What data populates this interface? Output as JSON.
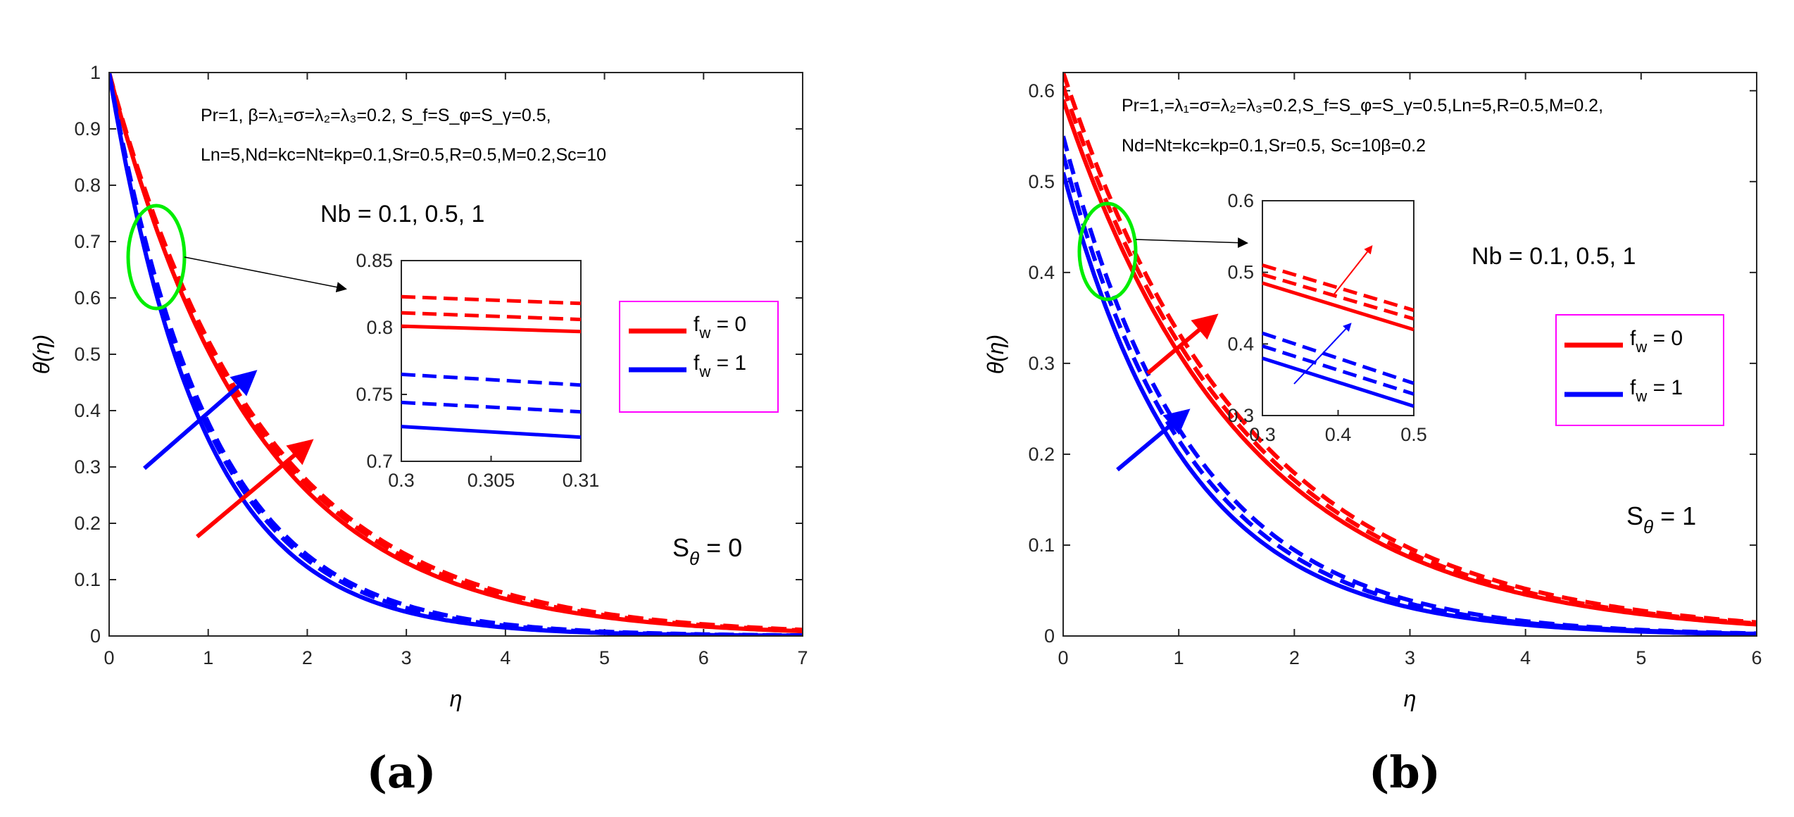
{
  "colors": {
    "red": "#ff0000",
    "blue": "#0000ff",
    "green": "#00ee00",
    "legend_box": "#ff00ff",
    "axis": "#262626"
  },
  "chart_data": [
    {
      "type": "line",
      "panel_label": "(a)",
      "xlabel": "η",
      "ylabel": "θ(η)",
      "xlim": [
        0,
        7
      ],
      "ylim": [
        0,
        1
      ],
      "xticks": [
        "0",
        "1",
        "2",
        "3",
        "4",
        "5",
        "6",
        "7"
      ],
      "yticks": [
        "0",
        "0.1",
        "0.2",
        "0.3",
        "0.4",
        "0.5",
        "0.6",
        "0.7",
        "0.8",
        "0.9",
        "1"
      ],
      "params_line1": "Pr=1, β=λ₁=σ=λ₂=λ₃=0.2, S_f=S_φ=S_γ=0.5,",
      "params_line2": "Ln=5,Nd=kc=Nt=kp=0.1,Sr=0.5,R=0.5,M=0.2,Sc=10",
      "nb_label": "Nb = 0.1, 0.5, 1",
      "s_label": "S",
      "s_sub": "θ",
      "s_value": " = 0",
      "legend": [
        {
          "name": "f",
          "sub": "w",
          "rest": " = 0",
          "color": "#ff0000"
        },
        {
          "name": "f",
          "sub": "w",
          "rest": " = 1",
          "color": "#0000ff"
        }
      ],
      "series": [
        {
          "name": "fw=0, Nb=0.1",
          "color": "#ff0000",
          "style": "solid",
          "y0": 1.0,
          "decay": 0.68
        },
        {
          "name": "fw=0, Nb=0.5",
          "color": "#ff0000",
          "style": "dashed",
          "y0": 1.0,
          "decay": 0.66
        },
        {
          "name": "fw=0, Nb=1",
          "color": "#ff0000",
          "style": "dashed",
          "y0": 1.0,
          "decay": 0.645
        },
        {
          "name": "fw=1, Nb=0.1",
          "color": "#0000ff",
          "style": "solid",
          "y0": 1.0,
          "decay": 1.05
        },
        {
          "name": "fw=1, Nb=0.5",
          "color": "#0000ff",
          "style": "dashed",
          "y0": 1.0,
          "decay": 1.0
        },
        {
          "name": "fw=1, Nb=1",
          "color": "#0000ff",
          "style": "dashed",
          "y0": 1.0,
          "decay": 0.97
        }
      ],
      "inset": {
        "xlim": [
          0.3,
          0.31
        ],
        "ylim": [
          0.7,
          0.85
        ],
        "xticks": [
          "0.3",
          "0.305",
          "0.31"
        ],
        "yticks": [
          "0.7",
          "0.75",
          "0.8",
          "0.85"
        ],
        "series": [
          {
            "color": "#ff0000",
            "style": "solid",
            "y": [
              0.801,
              0.797
            ]
          },
          {
            "color": "#ff0000",
            "style": "dashed",
            "y": [
              0.811,
              0.806
            ]
          },
          {
            "color": "#ff0000",
            "style": "dashed",
            "y": [
              0.823,
              0.818
            ]
          },
          {
            "color": "#0000ff",
            "style": "solid",
            "y": [
              0.726,
              0.718
            ]
          },
          {
            "color": "#0000ff",
            "style": "dashed",
            "y": [
              0.744,
              0.737
            ]
          },
          {
            "color": "#0000ff",
            "style": "dashed",
            "y": [
              0.765,
              0.757
            ]
          }
        ]
      }
    },
    {
      "type": "line",
      "panel_label": "(b)",
      "xlabel": "η",
      "ylabel": "θ(η)",
      "xlim": [
        0,
        6
      ],
      "ylim": [
        0,
        0.62
      ],
      "xticks": [
        "0",
        "1",
        "2",
        "3",
        "4",
        "5",
        "6"
      ],
      "yticks": [
        "0",
        "0.1",
        "0.2",
        "0.3",
        "0.4",
        "0.5",
        "0.6"
      ],
      "params_line1": "Pr=1,=λ₁=σ=λ₂=λ₃=0.2,S_f=S_φ=S_γ=0.5,Ln=5,R=0.5,M=0.2,",
      "params_line2": "Nd=Nt=kc=kp=0.1,Sr=0.5, Sc=10β=0.2",
      "nb_label": "Nb = 0.1, 0.5, 1",
      "s_label": "S",
      "s_sub": "θ",
      "s_value": " = 1",
      "legend": [
        {
          "name": "f",
          "sub": "w",
          "rest": " = 0",
          "color": "#ff0000"
        },
        {
          "name": "f",
          "sub": "w",
          "rest": " = 1",
          "color": "#0000ff"
        }
      ],
      "series": [
        {
          "name": "fw=0, Nb=0.1",
          "color": "#ff0000",
          "style": "solid",
          "y0": 0.59,
          "decay": 0.64
        },
        {
          "name": "fw=0, Nb=0.5",
          "color": "#ff0000",
          "style": "dashed",
          "y0": 0.605,
          "decay": 0.63
        },
        {
          "name": "fw=0, Nb=1",
          "color": "#ff0000",
          "style": "dashed",
          "y0": 0.62,
          "decay": 0.62
        },
        {
          "name": "fw=1, Nb=0.1",
          "color": "#0000ff",
          "style": "solid",
          "y0": 0.51,
          "decay": 0.93
        },
        {
          "name": "fw=1, Nb=0.5",
          "color": "#0000ff",
          "style": "dashed",
          "y0": 0.53,
          "decay": 0.9
        },
        {
          "name": "fw=1, Nb=1",
          "color": "#0000ff",
          "style": "dashed",
          "y0": 0.55,
          "decay": 0.88
        }
      ],
      "inset": {
        "xlim": [
          0.3,
          0.5
        ],
        "ylim": [
          0.3,
          0.6
        ],
        "xticks": [
          "0.3",
          "0.4",
          "0.5"
        ],
        "yticks": [
          "0.3",
          "0.4",
          "0.5",
          "0.6"
        ],
        "series": [
          {
            "color": "#ff0000",
            "style": "solid",
            "y": [
              0.485,
              0.42
            ]
          },
          {
            "color": "#ff0000",
            "style": "dashed",
            "y": [
              0.497,
              0.435
            ]
          },
          {
            "color": "#ff0000",
            "style": "dashed",
            "y": [
              0.51,
              0.447
            ]
          },
          {
            "color": "#0000ff",
            "style": "solid",
            "y": [
              0.38,
              0.313
            ]
          },
          {
            "color": "#0000ff",
            "style": "dashed",
            "y": [
              0.397,
              0.33
            ]
          },
          {
            "color": "#0000ff",
            "style": "dashed",
            "y": [
              0.415,
              0.345
            ]
          }
        ]
      }
    }
  ]
}
